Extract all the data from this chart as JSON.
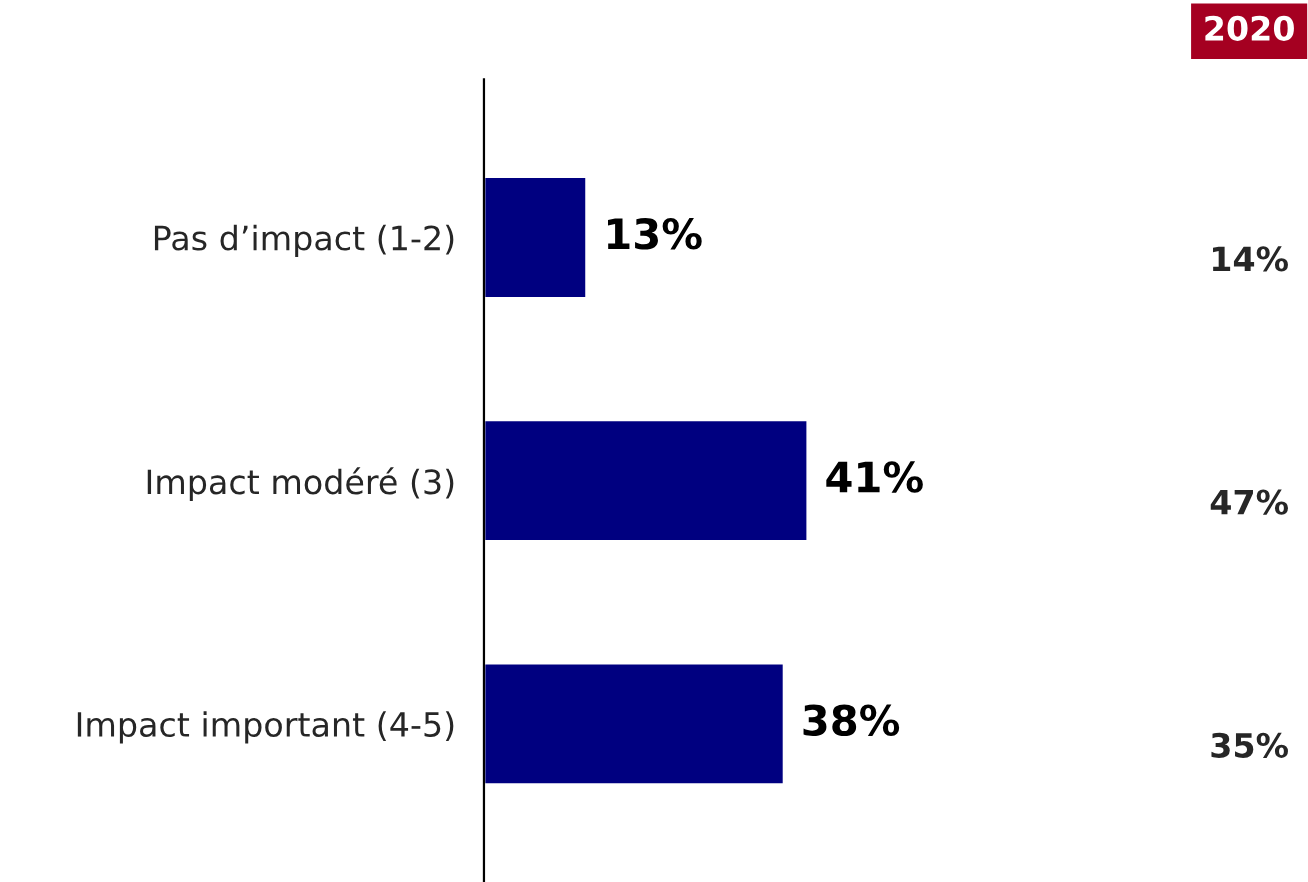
{
  "chart_data": {
    "type": "bar",
    "orientation": "horizontal",
    "categories": [
      "Pas d’impact (1-2)",
      "Impact modéré (3)",
      "Impact important (4-5)"
    ],
    "values": [
      13,
      41,
      38
    ],
    "value_labels": [
      "13%",
      "41%",
      "38%"
    ],
    "color": "#000080",
    "tick_labels": "y",
    "grid": false,
    "legend": false,
    "annotations": [
      "2020",
      "14%",
      "47%",
      "35%"
    ]
  }
}
